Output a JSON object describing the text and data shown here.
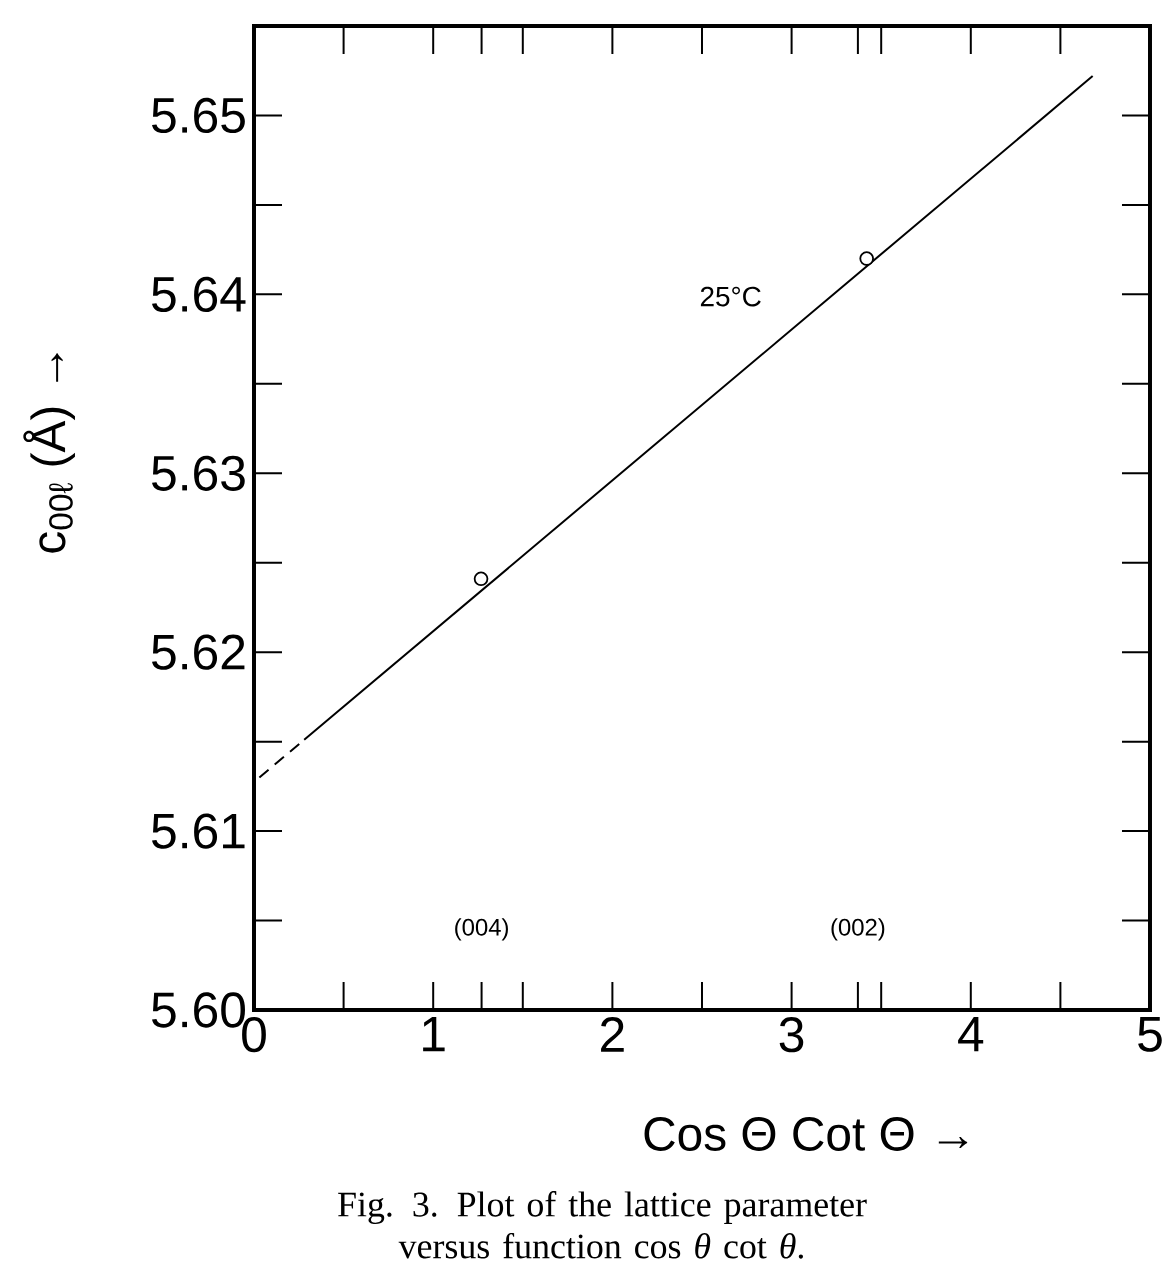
{
  "chart_data": {
    "type": "line",
    "xlabel": "Cos Θ Cot Θ  →",
    "ylabel": "c$_{00ℓ}$ (Å)  →",
    "series": [
      {
        "type": "scatter",
        "x": [
          1.267,
          3.419
        ],
        "values": [
          5.6241,
          5.642
        ],
        "color": "#000000",
        "marker": "circle"
      },
      {
        "x": [
          0.28,
          4.68
        ],
        "values": [
          5.6151,
          5.6522
        ],
        "color": "#000000",
        "line_style": "solid"
      },
      {
        "x": [
          0.03,
          0.28
        ],
        "values": [
          5.613,
          5.6151
        ],
        "color": "#000000",
        "line_style": "dashed"
      }
    ],
    "xlim": [
      0,
      5
    ],
    "ylim": [
      5.6,
      5.655
    ],
    "xticks": [
      0,
      {
        "value": 0.5,
        "label": null
      },
      1,
      {
        "value": 1.27,
        "label": null
      },
      {
        "value": 1.5,
        "label": null
      },
      2,
      {
        "value": 2.5,
        "label": null
      },
      3,
      {
        "value": 3.37,
        "label": null
      },
      {
        "value": 3.5,
        "label": null
      },
      4,
      {
        "value": 4.5,
        "label": null
      },
      5
    ],
    "yticks": [
      {
        "value": 5.6,
        "label": "5.60"
      },
      {
        "value": 5.605,
        "label": null
      },
      {
        "value": 5.61,
        "label": "5.61"
      },
      {
        "value": 5.615,
        "label": null
      },
      {
        "value": 5.62,
        "label": "5.62"
      },
      {
        "value": 5.625,
        "label": null
      },
      {
        "value": 5.63,
        "label": "5.63"
      },
      {
        "value": 5.635,
        "label": null
      },
      {
        "value": 5.64,
        "label": "5.64"
      },
      {
        "value": 5.645,
        "label": null
      },
      {
        "value": 5.65,
        "label": "5.65"
      }
    ],
    "annotations": [
      "25°C",
      "(004)",
      "(002)",
      "Fig. 3.  Plot of the lattice parameter versus function cos *θ* cot *θ*."
    ],
    "grid": false
  }
}
